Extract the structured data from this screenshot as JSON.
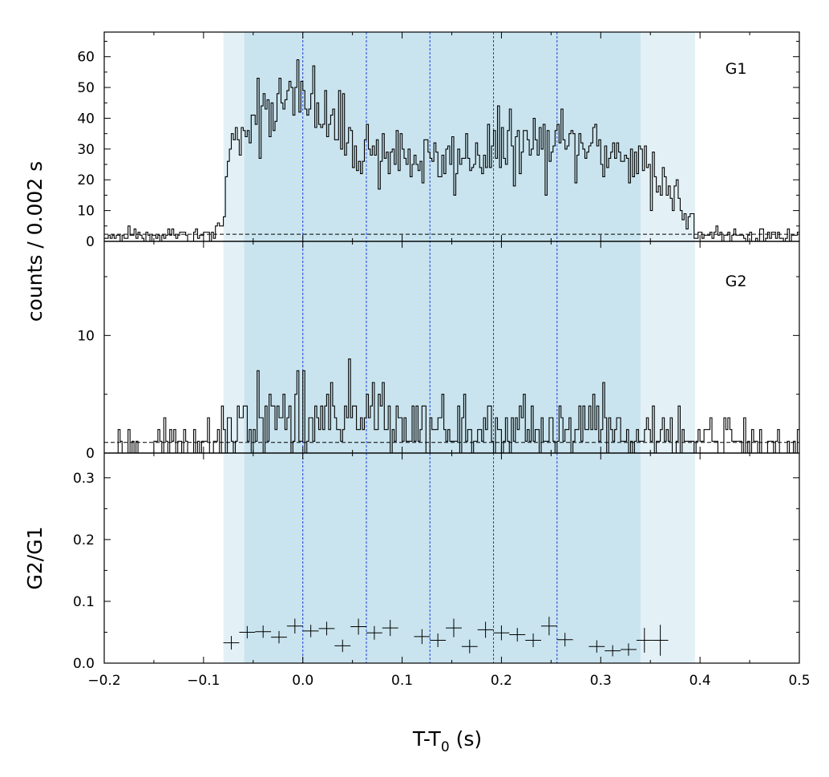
{
  "chart_data": [
    {
      "type": "step",
      "panel_label": "G1",
      "ylabel": "counts /  0.002 s",
      "ylim": [
        0,
        68
      ],
      "yticks": [
        "0",
        "10",
        "20",
        "30",
        "40",
        "50",
        "60"
      ],
      "xlim": [
        -0.2,
        0.5
      ],
      "background_level": 2.3,
      "counts_envelope": {
        "x": [
          -0.2,
          -0.09,
          -0.082,
          -0.075,
          -0.065,
          -0.05,
          -0.03,
          0.0,
          0.01,
          0.02,
          0.04,
          0.06,
          0.1,
          0.13,
          0.16,
          0.19,
          0.22,
          0.26,
          0.3,
          0.33,
          0.34,
          0.36,
          0.38,
          0.39,
          0.4,
          0.5
        ],
        "y": [
          2,
          2,
          6,
          25,
          35,
          42,
          45,
          46,
          44,
          40,
          35,
          30,
          28,
          25,
          27,
          30,
          31,
          31,
          30,
          28,
          24,
          19,
          14,
          7,
          2,
          2
        ]
      }
    },
    {
      "type": "step",
      "panel_label": "G2",
      "ylim": [
        0,
        18
      ],
      "yticks": [
        "0",
        "10"
      ],
      "xlim": [
        -0.2,
        0.5
      ],
      "background_level": 0.9,
      "counts_envelope": {
        "x": [
          -0.2,
          -0.08,
          -0.06,
          0.0,
          0.06,
          0.12,
          0.2,
          0.3,
          0.34,
          0.4,
          0.5
        ],
        "y": [
          0.9,
          0.9,
          2.5,
          3.0,
          2.8,
          2.2,
          2.2,
          2.0,
          1.6,
          1.0,
          0.9
        ]
      }
    },
    {
      "type": "scatter",
      "ylabel": "G2/G1",
      "xlabel_main": "T-T",
      "xlabel_sub": "0",
      "xlabel_tail": " (s)",
      "ylim": [
        0,
        0.34
      ],
      "xlim": [
        -0.2,
        0.5
      ],
      "yticks": [
        "0.0",
        "0.1",
        "0.2",
        "0.3"
      ],
      "xticks": [
        "−0.2",
        "−0.1",
        "0.0",
        "0.1",
        "0.2",
        "0.3",
        "0.4",
        "0.5"
      ],
      "points": {
        "x": [
          -0.072,
          -0.056,
          -0.04,
          -0.024,
          -0.008,
          0.008,
          0.024,
          0.04,
          0.056,
          0.072,
          0.088,
          0.12,
          0.136,
          0.152,
          0.168,
          0.184,
          0.2,
          0.216,
          0.232,
          0.248,
          0.264,
          0.296,
          0.312,
          0.328,
          0.344,
          0.36
        ],
        "y": [
          0.033,
          0.05,
          0.051,
          0.042,
          0.06,
          0.052,
          0.056,
          0.028,
          0.059,
          0.049,
          0.057,
          0.043,
          0.037,
          0.057,
          0.027,
          0.054,
          0.049,
          0.046,
          0.037,
          0.06,
          0.038,
          0.027,
          0.02,
          0.022,
          0.037,
          0.037
        ],
        "yerr": [
          0.011,
          0.01,
          0.01,
          0.01,
          0.012,
          0.01,
          0.011,
          0.01,
          0.013,
          0.011,
          0.013,
          0.012,
          0.011,
          0.015,
          0.011,
          0.013,
          0.012,
          0.011,
          0.011,
          0.015,
          0.011,
          0.01,
          0.009,
          0.01,
          0.02,
          0.025
        ],
        "xerr": 0.008
      }
    }
  ],
  "intervals": {
    "outer_range": [
      -0.08,
      0.395
    ],
    "inner_range": [
      -0.059,
      0.34
    ],
    "dividers": [
      0.0,
      0.064,
      0.128,
      0.192,
      0.256
    ],
    "outer_color": "#e3f1f7",
    "inner_color": "#c9e4ee",
    "divider_color": "#1f3fd6"
  }
}
